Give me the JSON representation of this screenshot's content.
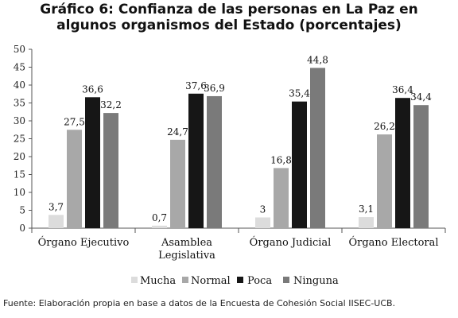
{
  "title_line1": "Gráfico 6: Confianza de las personas en La Paz en",
  "title_line2": "algunos organismos del Estado (porcentajes)",
  "source": "Fuente: Elaboración propia en base a datos de la Encuesta de Cohesión Social IISEC-UCB.",
  "chart_data": {
    "type": "bar",
    "categories": [
      "Órgano Ejecutivo",
      "Asamblea Legislativa",
      "Órgano Judicial",
      "Órgano Electoral"
    ],
    "category_lines": [
      [
        "Órgano Ejecutivo"
      ],
      [
        "Asamblea",
        "Legislativa"
      ],
      [
        "Órgano Judicial"
      ],
      [
        "Órgano Electoral"
      ]
    ],
    "series": [
      {
        "name": "Mucha",
        "color": "#dcdcdc",
        "values": [
          3.7,
          0.7,
          3,
          3.1
        ],
        "labels": [
          "3,7",
          "0,7",
          "3",
          "3,1"
        ]
      },
      {
        "name": "Normal",
        "color": "#a8a8a8",
        "values": [
          27.5,
          24.7,
          16.8,
          26.2
        ],
        "labels": [
          "27,5",
          "24,7",
          "16,8",
          "26,2"
        ]
      },
      {
        "name": "Poca",
        "color": "#161616",
        "values": [
          36.6,
          37.6,
          35.4,
          36.4
        ],
        "labels": [
          "36,6",
          "37,6",
          "35,4",
          "36,4"
        ]
      },
      {
        "name": "Ninguna",
        "color": "#7a7a7a",
        "values": [
          32.2,
          36.9,
          44.8,
          34.4
        ],
        "labels": [
          "32,2",
          "36,9",
          "44,8",
          "34,4"
        ]
      }
    ],
    "yticks": [
      0,
      5,
      10,
      15,
      20,
      25,
      30,
      35,
      40,
      45,
      50
    ],
    "ylim": [
      0,
      50
    ],
    "grid": false,
    "legend_position": "bottom"
  }
}
